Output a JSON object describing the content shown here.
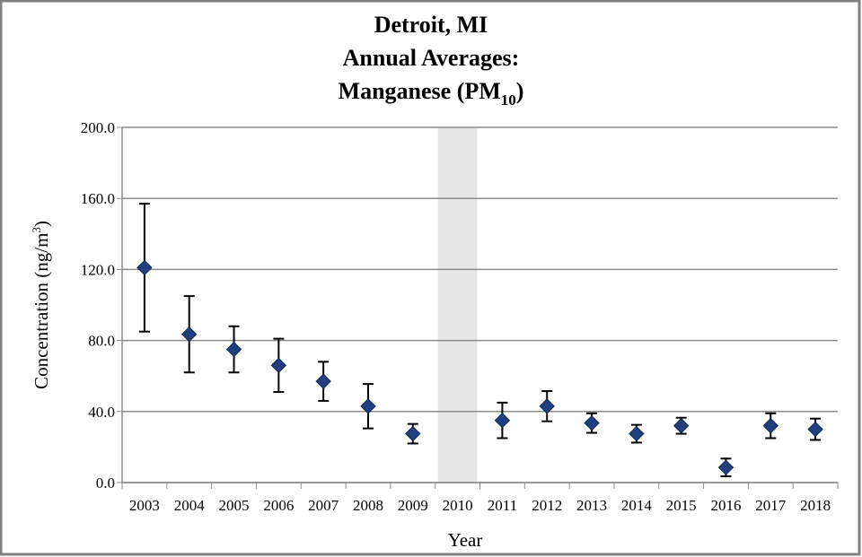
{
  "chart_data": {
    "type": "scatter-errorbar",
    "title_lines": [
      "Detroit, MI",
      "Annual Averages:"
    ],
    "title_line3": {
      "text": "Manganese (PM",
      "subscript": "10",
      "suffix": ")"
    },
    "y_label": {
      "text": "Concentration (ng/m",
      "superscript": "3",
      "suffix": ")"
    },
    "x_label": "Year",
    "categories": [
      "2003",
      "2004",
      "2005",
      "2006",
      "2007",
      "2008",
      "2009",
      "2010",
      "2011",
      "2012",
      "2013",
      "2014",
      "2015",
      "2016",
      "2017",
      "2018"
    ],
    "values": [
      121,
      83.5,
      75,
      66,
      57,
      43,
      27.5,
      null,
      35,
      43,
      33.5,
      27.5,
      32,
      8.5,
      32,
      30
    ],
    "errors": [
      36,
      21.5,
      13,
      15,
      11,
      12.5,
      5.5,
      null,
      10,
      8.5,
      5.5,
      5,
      4.5,
      5,
      7,
      6
    ],
    "color": "#1f3f7f",
    "shaded_categories": [
      "2010"
    ],
    "ylim": [
      0,
      200
    ],
    "yticks": [
      {
        "value": 0,
        "label": "0.0"
      },
      {
        "value": 40,
        "label": "40.0"
      },
      {
        "value": 80,
        "label": "80.0"
      },
      {
        "value": 120,
        "label": "120.0"
      },
      {
        "value": 160,
        "label": "160.0"
      },
      {
        "value": 200,
        "label": "200.0"
      }
    ],
    "grid": true
  }
}
